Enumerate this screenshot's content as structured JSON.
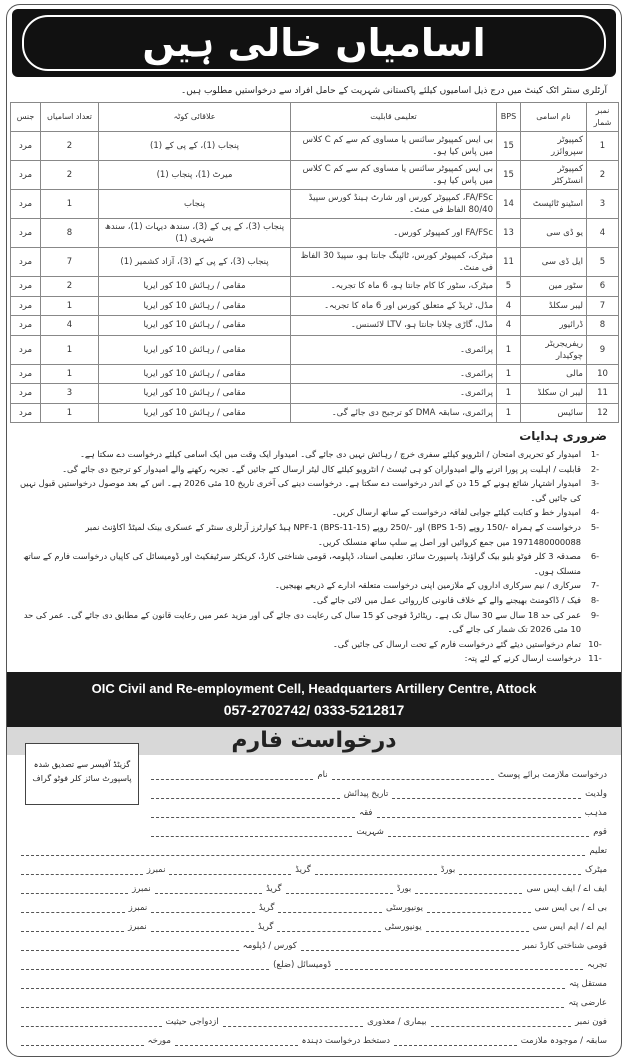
{
  "header": {
    "title": "اسامیاں خالی ہیں"
  },
  "intro": "آرٹلری سنٹر اٹک کینٹ میں درج ذیل اسامیوں کیلئے پاکستانی شہریت کے حامل افراد سے درخواستیں مطلوب ہیں۔",
  "table": {
    "headers": [
      "نمبر شمار",
      "نام اسامی",
      "BPS",
      "تعلیمی قابلیت",
      "علاقائی کوٹہ",
      "تعداد اسامیاں",
      "جنس"
    ],
    "rows": [
      [
        "1",
        "کمپیوٹر سپروائزر",
        "15",
        "بی ایس کمپیوٹر سائنس یا مساوی کم سے کم C کلاس میں پاس کیا ہو۔",
        "پنجاب (1)، کے پی کے (1)",
        "2",
        "مرد"
      ],
      [
        "2",
        "کمپیوٹر انسٹرکٹر",
        "15",
        "بی ایس کمپیوٹر سائنس یا مساوی کم سے کم C کلاس میں پاس کیا ہو۔",
        "میرٹ (1)، پنجاب (1)",
        "2",
        "مرد"
      ],
      [
        "3",
        "اسٹینو ٹائپسٹ",
        "14",
        "FA/FSc، کمپیوٹر کورس اور شارٹ ہینڈ کورس سپیڈ 80/40 الفاظ فی منٹ۔",
        "پنجاب",
        "1",
        "مرد"
      ],
      [
        "4",
        "یو ڈی سی",
        "13",
        "FA/FSc اور کمپیوٹر کورس۔",
        "پنجاب (3)، کے پی کے (3)، سندھ دیہات (1)، سندھ شہری (1)",
        "8",
        "مرد"
      ],
      [
        "5",
        "ایل ڈی سی",
        "11",
        "میٹرک، کمپیوٹر کورس، ٹائپنگ جانتا ہو، سپیڈ 30 الفاظ فی منٹ۔",
        "پنجاب (3)، کے پی کے (3)، آزاد کشمیر (1)",
        "7",
        "مرد"
      ],
      [
        "6",
        "سٹور مین",
        "5",
        "میٹرک، سٹور کا کام جانتا ہو، 6 ماہ کا تجربہ۔",
        "مقامی / رہائش 10 کور ایریا",
        "2",
        "مرد"
      ],
      [
        "7",
        "لیبر سکلڈ",
        "4",
        "مڈل، ٹریڈ کے متعلق کورس اور 6 ماہ کا تجربہ۔",
        "مقامی / رہائش 10 کور ایریا",
        "1",
        "مرد"
      ],
      [
        "8",
        "ڈرائیور",
        "4",
        "مڈل، گاڑی چلانا جانتا ہو، LTV لائسنس۔",
        "مقامی / رہائش 10 کور ایریا",
        "4",
        "مرد"
      ],
      [
        "9",
        "ریفریجریٹر چوکیدار",
        "1",
        "پرائمری۔",
        "مقامی / رہائش 10 کور ایریا",
        "1",
        "مرد"
      ],
      [
        "10",
        "مالی",
        "1",
        "پرائمری۔",
        "مقامی / رہائش 10 کور ایریا",
        "1",
        "مرد"
      ],
      [
        "11",
        "لیبر ان سکلڈ",
        "1",
        "پرائمری۔",
        "مقامی / رہائش 10 کور ایریا",
        "3",
        "مرد"
      ],
      [
        "12",
        "سائیس",
        "1",
        "پرائمری، سابقہ DMA کو ترجیح دی جائے گی۔",
        "مقامی / رہائش 10 کور ایریا",
        "1",
        "مرد"
      ]
    ]
  },
  "instructions": {
    "title": "ضروری ہدایات",
    "items": [
      {
        "n": "-1",
        "t": "امیدوار کو تحریری امتحان / انٹرویو کیلئے سفری خرچ / رہائش نہیں دی جائے گی۔ امیدوار ایک وقت میں ایک اسامی کیلئے درخواست دے سکتا ہے۔"
      },
      {
        "n": "-2",
        "t": "قابلیت / اہلیت پر پورا اترنے والے امیدواران کو ہی ٹیسٹ / انٹرویو کیلئے کال لیٹر ارسال کئے جائیں گے۔ تجربہ رکھنے والے امیدوار کو ترجیح دی جائے گی۔"
      },
      {
        "n": "-3",
        "t": "امیدوار اشتہار شائع ہونے کے 15 دن کے اندر درخواست دے سکتا ہے۔ درخواست دینے کی آخری تاریخ 10 مئی 2026 ہے۔ اس کے بعد موصول درخواستیں قبول نہیں کی جائیں گی۔"
      },
      {
        "n": "-4",
        "t": "امیدوار خط و کتابت کیلئے جوابی لفافہ درخواست کے ساتھ ارسال کریں۔"
      },
      {
        "n": "-5",
        "t": "درخواست کے ہمراہ -/150 روپے (BPS 1-5) اور -/250 روپے (BPS-11-15) NPF-1 ہیڈ کوارٹرز آرٹلری سنٹر کے عسکری بینک لمیٹڈ اکاؤنٹ نمبر 1971480000088 میں جمع کروائیں اور اصل پے سلپ ساتھ منسلک کریں۔"
      },
      {
        "n": "-6",
        "t": "مصدقہ 3 کلر فوٹو بلیو بیک گراؤنڈ، پاسپورٹ سائز، تعلیمی اسناد، ڈپلومہ، قومی شناختی کارڈ، کریکٹر سرٹیفکیٹ اور ڈومیسائل کی کاپیاں درخواست فارم کے ساتھ منسلک ہوں۔"
      },
      {
        "n": "-7",
        "t": "سرکاری / نیم سرکاری اداروں کے ملازمین اپنی درخواست متعلقہ ادارے کے ذریعے بھیجیں۔"
      },
      {
        "n": "-8",
        "t": "فیک / ڈاکومنٹ بھیجنے والے کے خلاف قانونی کارروائی عمل میں لائی جائے گی۔"
      },
      {
        "n": "-9",
        "t": "عمر کی حد 18 سال سے 30 سال تک ہے۔ ریٹائرڈ فوجی کو 15 سال کی رعایت دی جائے گی اور مزید عمر میں رعایت قانون کے مطابق دی جائے گی۔ عمر کی حد 10 مئی 2026 تک شمار کی جائے گی۔"
      },
      {
        "n": "-10",
        "t": "تمام درخواستیں دیئے گئے درخواست فارم کے تحت ارسال کی جائیں گی۔"
      },
      {
        "n": "-11",
        "t": "درخواست ارسال کرنے کے لئے پتہ:"
      }
    ]
  },
  "contact": {
    "line1": "OIC Civil and Re-employment Cell, Headquarters Artillery Centre, Attock",
    "line2": "057-2702742/ 0333-5212817"
  },
  "form": {
    "title": "درخواست فارم",
    "photo_note": "گزیٹڈ آفیسر سے تصدیق شدہ پاسپورٹ سائز کلر فوٹو گراف",
    "rows": [
      [
        "درخواست ملازمت برائے پوسٹ",
        "نام"
      ],
      [
        "ولدیت",
        "تاریخ پیدائش"
      ],
      [
        "مذہب",
        "فقہ"
      ],
      [
        "قوم",
        "شہریت"
      ],
      [
        "تعلیم"
      ],
      [
        "میٹرک",
        "بورڈ",
        "گریڈ",
        "نمبرز"
      ],
      [
        "ایف اے / ایف ایس سی",
        "بورڈ",
        "گریڈ",
        "نمبرز"
      ],
      [
        "بی اے / بی ایس سی",
        "یونیورسٹی",
        "گریڈ",
        "نمبرز"
      ],
      [
        "ایم اے / ایم ایس سی",
        "یونیورسٹی",
        "گریڈ",
        "نمبرز"
      ],
      [
        "قومی شناختی کارڈ نمبر",
        "کورس / ڈپلومہ"
      ],
      [
        "تجربہ",
        "ڈومیسائل (ضلع)"
      ],
      [
        "مستقل پتہ"
      ],
      [
        "عارضی پتہ"
      ],
      [
        "فون نمبر",
        "بیماری / معذوری",
        "ازدواجی حیثیت"
      ],
      [
        "سابقہ / موجودہ ملازمت",
        "دستخط درخواست دہندہ",
        "مورخہ"
      ]
    ]
  }
}
